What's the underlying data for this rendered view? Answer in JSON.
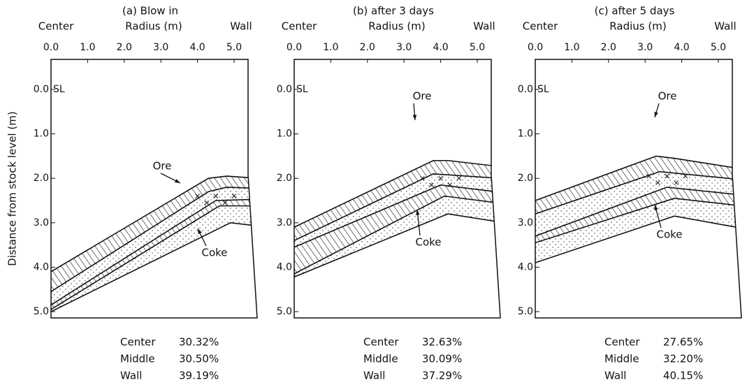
{
  "y_axis_label": "Distance from stock level (m)",
  "panels": [
    {
      "title": "(a)  Blow in",
      "x_header": {
        "left": "Center",
        "middle": "Radius  (m)",
        "right": "Wall"
      },
      "x_ticks": [
        "0.0",
        "1.0",
        "2.0",
        "3.0",
        "4.0",
        "5.0"
      ],
      "y_ticks": [
        "0.0",
        "1.0",
        "2.0",
        "3.0",
        "4.0",
        "5.0"
      ],
      "stock_level": "SL",
      "labels": {
        "ore": "Ore",
        "coke": "Coke"
      },
      "summary": [
        [
          "Center",
          "30.32%"
        ],
        [
          "Middle",
          "30.50%"
        ],
        [
          "Wall",
          "39.19%"
        ]
      ]
    },
    {
      "title": "(b)  after  3 days",
      "x_header": {
        "left": "Center",
        "middle": "Radius  (m)",
        "right": "Wall"
      },
      "x_ticks": [
        "0.0",
        "1.0",
        "2.0",
        "3.0",
        "4.0",
        "5.0"
      ],
      "y_ticks": [
        "0.0",
        "1.0",
        "2.0",
        "3.0",
        "4.0",
        "5.0"
      ],
      "stock_level": "SL",
      "labels": {
        "ore": "Ore",
        "coke": "Coke"
      },
      "summary": [
        [
          "Center",
          "32.63%"
        ],
        [
          "Middle",
          "30.09%"
        ],
        [
          "Wall",
          "37.29%"
        ]
      ]
    },
    {
      "title": "(c)  after  5 days",
      "x_header": {
        "left": "Center",
        "middle": "Radius  (m)",
        "right": "Wall"
      },
      "x_ticks": [
        "0.0",
        "1.0",
        "2.0",
        "3.0",
        "4.0",
        "5.0"
      ],
      "y_ticks": [
        "0.0",
        "1.0",
        "2.0",
        "3.0",
        "4.0",
        "5.0"
      ],
      "stock_level": "SL",
      "labels": {
        "ore": "Ore",
        "coke": "Coke"
      },
      "summary": [
        [
          "Center",
          "27.65%"
        ],
        [
          "Middle",
          "32.20%"
        ],
        [
          "Wall",
          "40.15%"
        ]
      ]
    }
  ]
}
